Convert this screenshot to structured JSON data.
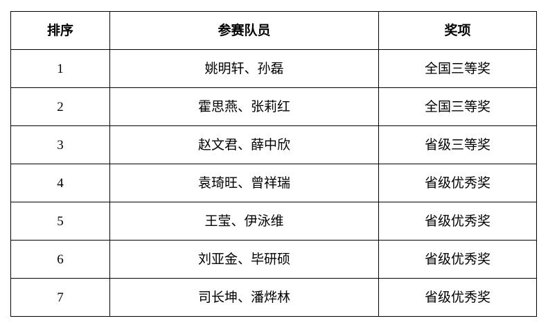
{
  "colors": {
    "background": "#ffffff",
    "border": "#000000",
    "text": "#000000"
  },
  "table": {
    "headers": [
      "排序",
      "参赛队员",
      "奖项"
    ],
    "rows": [
      {
        "rank": "1",
        "members": "姚明轩、孙磊",
        "award": "全国三等奖"
      },
      {
        "rank": "2",
        "members": "霍思燕、张莉红",
        "award": "全国三等奖"
      },
      {
        "rank": "3",
        "members": "赵文君、薛中欣",
        "award": "省级三等奖"
      },
      {
        "rank": "4",
        "members": "袁琦旺、曾祥瑞",
        "award": "省级优秀奖"
      },
      {
        "rank": "5",
        "members": "王莹、伊泳维",
        "award": "省级优秀奖"
      },
      {
        "rank": "6",
        "members": "刘亚金、毕研硕",
        "award": "省级优秀奖"
      },
      {
        "rank": "7",
        "members": "司长坤、潘烨林",
        "award": "省级优秀奖"
      }
    ]
  }
}
